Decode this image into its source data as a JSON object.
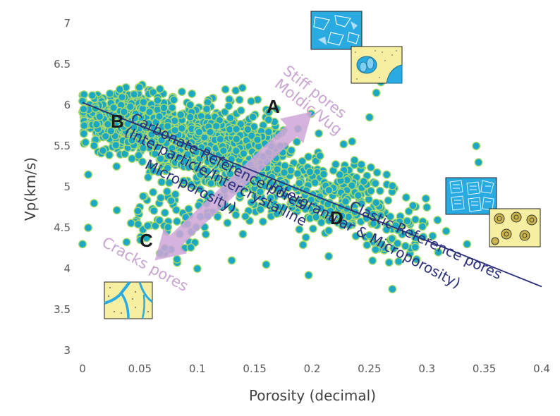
{
  "chart_data": {
    "type": "scatter",
    "title": "",
    "xlabel": "Porosity (decimal)",
    "ylabel": "Vp(km/s)",
    "xlim": [
      0,
      0.4
    ],
    "ylim": [
      3,
      7
    ],
    "x_ticks": [
      "0",
      "0.05",
      "0.1",
      "0.15",
      "0.2",
      "0.25",
      "0.3",
      "0.35",
      "0.4"
    ],
    "y_ticks": [
      "3",
      "3.5",
      "4",
      "4.5",
      "5",
      "5.5",
      "6",
      "6.5",
      "7"
    ],
    "grid": false,
    "legend": "none",
    "point_color": "#1aa8c4",
    "point_edge_color": "#a8d86a",
    "reference_line": {
      "color": "#2b2f7a",
      "points": [
        [
          0.0,
          6.03
        ],
        [
          0.4,
          3.78
        ]
      ]
    },
    "arrow": {
      "color": "#cfa6d9",
      "from": [
        0.063,
        4.1
      ],
      "to": [
        0.2,
        5.92
      ]
    },
    "annotations": {
      "letter_a": "A",
      "letter_b": "B",
      "letter_c": "C",
      "letter_d": "D",
      "stiff_pores": "Stiff pores",
      "moldic_vug": "Moldic/Vug",
      "carbonate_ref": "Carbonate Reference pores",
      "carbonate_ref_2": "(Interparticle/Intercrystalline",
      "carbonate_ref_3": "Microporosity)",
      "clastic_ref": "Clastic Reference pores",
      "clastic_ref_2": "(Intergranular & Microporosity)",
      "cracks_pores": "Cracks pores"
    },
    "series": [
      {
        "clusters": [
          {
            "cx": 0.04,
            "cy": 5.8,
            "sx": 0.028,
            "sy": 0.25,
            "n": 520
          },
          {
            "cx": 0.1,
            "cy": 5.6,
            "sx": 0.035,
            "sy": 0.35,
            "n": 360
          },
          {
            "cx": 0.15,
            "cy": 5.3,
            "sx": 0.04,
            "sy": 0.45,
            "n": 330
          },
          {
            "cx": 0.22,
            "cy": 4.9,
            "sx": 0.035,
            "sy": 0.35,
            "n": 200
          },
          {
            "cx": 0.27,
            "cy": 4.5,
            "sx": 0.03,
            "sy": 0.3,
            "n": 70
          },
          {
            "cx": 0.08,
            "cy": 4.6,
            "sx": 0.04,
            "sy": 0.35,
            "n": 70
          }
        ],
        "outliers": [
          [
            0.0,
            4.3
          ],
          [
            0.005,
            5.15
          ],
          [
            0.005,
            4.5
          ],
          [
            0.27,
            3.75
          ],
          [
            0.197,
            3.92
          ],
          [
            0.335,
            4.3
          ],
          [
            0.343,
            5.5
          ],
          [
            0.345,
            5.3
          ],
          [
            0.31,
            4.2
          ],
          [
            0.29,
            4.6
          ],
          [
            0.305,
            4.4
          ],
          [
            0.256,
            6.15
          ],
          [
            0.26,
            6.28
          ],
          [
            0.25,
            5.85
          ],
          [
            0.1,
            4.0
          ],
          [
            0.16,
            4.05
          ],
          [
            0.13,
            4.1
          ],
          [
            0.3,
            4.75
          ],
          [
            0.265,
            5.15
          ],
          [
            0.01,
            4.8
          ]
        ]
      }
    ]
  }
}
